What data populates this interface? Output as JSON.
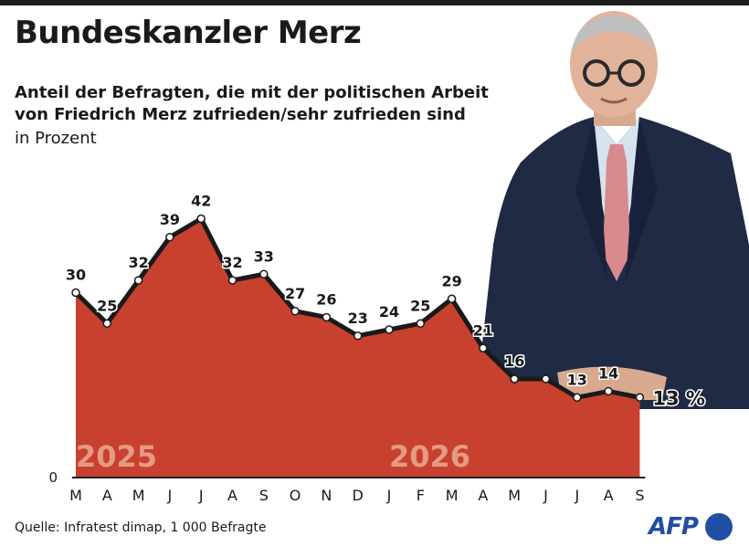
{
  "header": {
    "title": "Bundeskanzler Merz",
    "subtitle": "Anteil der Befragten, die mit der politischen Arbeit von Friedrich Merz zufrieden/sehr zufrieden sind",
    "unit": "in Prozent"
  },
  "footer": {
    "source": "Quelle: Infratest dimap, 1 000 Befragte",
    "logo_text": "AFP"
  },
  "colors": {
    "area": "#c8412e",
    "line": "#1a1a1a",
    "year_label": "#e59a84"
  },
  "chart_data": {
    "type": "area",
    "title": "Bundeskanzler Merz",
    "categories": [
      "M",
      "A",
      "M",
      "J",
      "J",
      "A",
      "S",
      "O",
      "N",
      "D",
      "J",
      "F",
      "M",
      "A",
      "M",
      "J",
      "J",
      "A",
      "S"
    ],
    "values": [
      30,
      25,
      32,
      39,
      42,
      32,
      33,
      27,
      26,
      23,
      24,
      25,
      29,
      21,
      16,
      16,
      13,
      14,
      13
    ],
    "point_labels": [
      "30",
      "25",
      "32",
      "39",
      "42",
      "32",
      "33",
      "27",
      "26",
      "23",
      "24",
      "25",
      "29",
      "21",
      "16",
      "",
      "13",
      "14",
      "13 %"
    ],
    "year_labels": [
      {
        "text": "2025",
        "at_index": 0
      },
      {
        "text": "2026",
        "at_index": 10
      }
    ],
    "y_tick_labels": [
      "0"
    ],
    "ylim": [
      0,
      50
    ],
    "grid": false,
    "legend": "none"
  }
}
